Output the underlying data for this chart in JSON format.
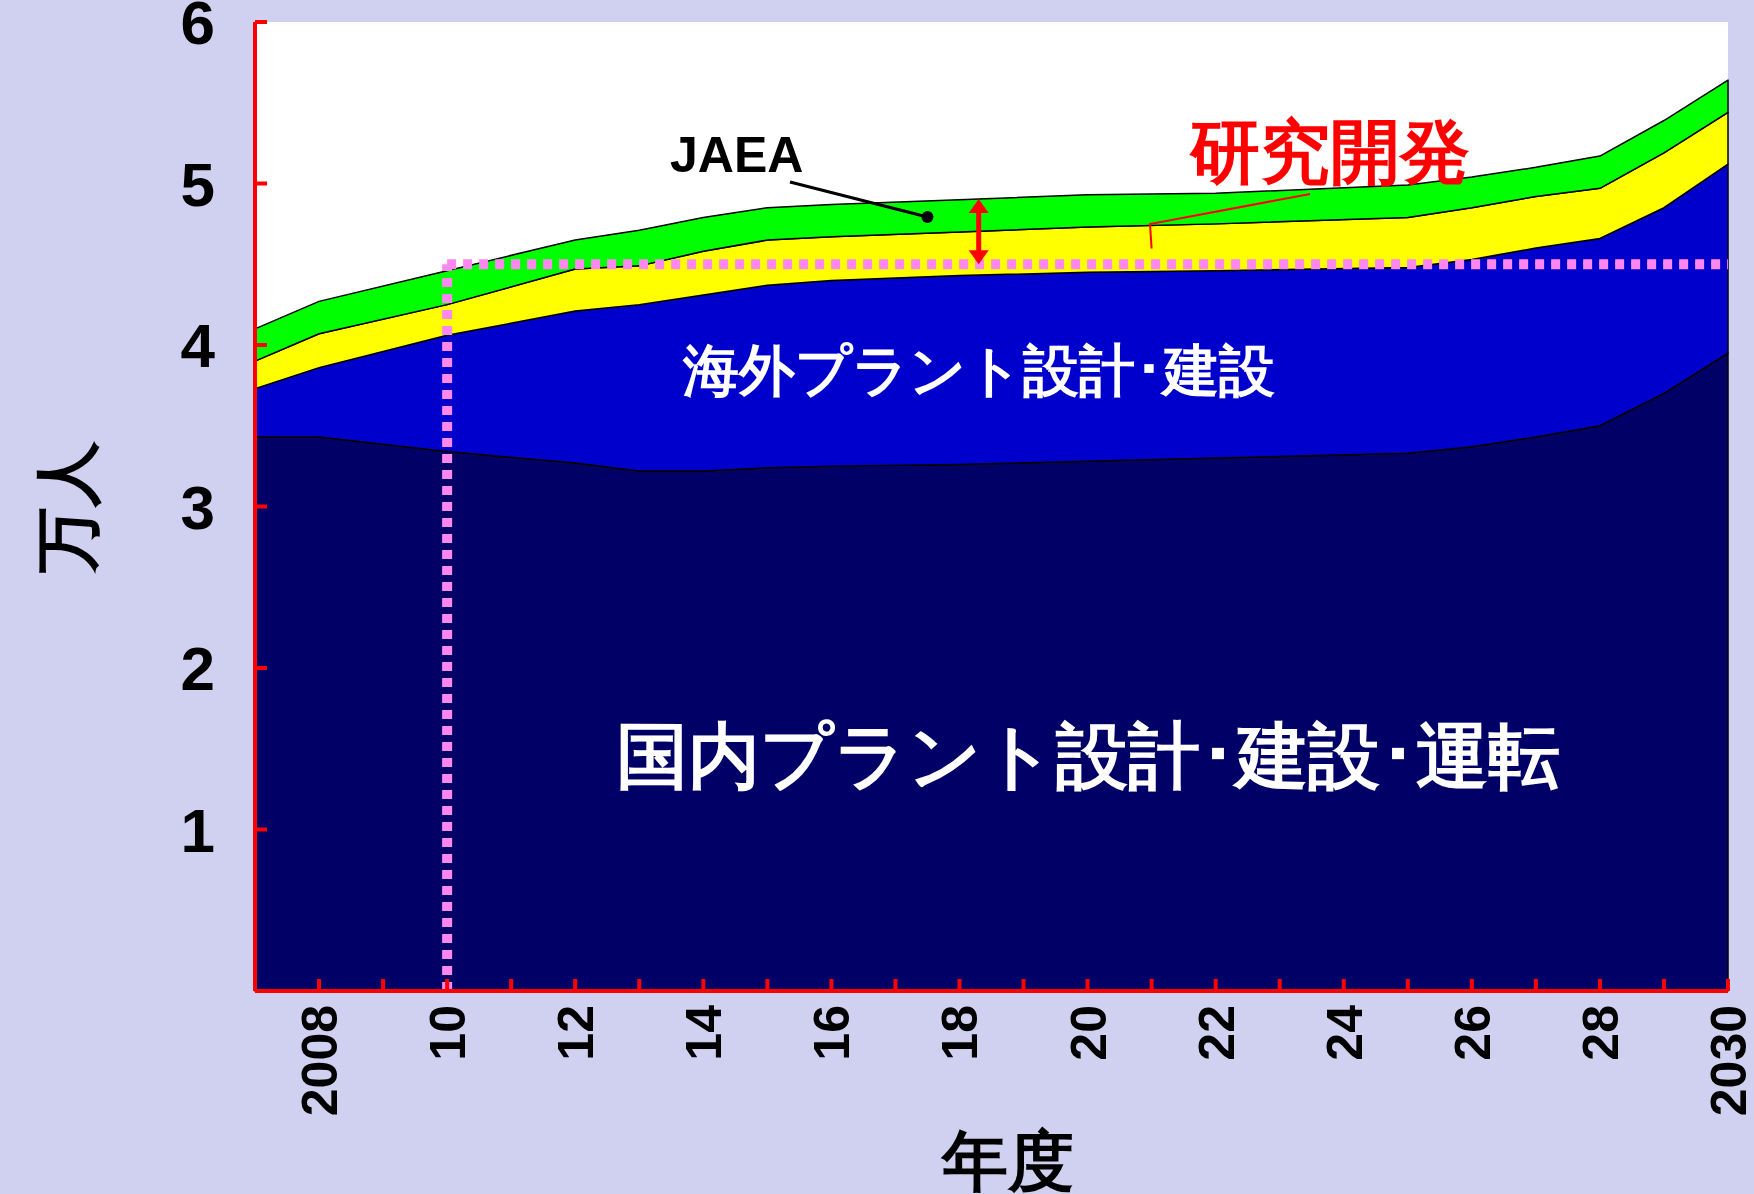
{
  "chart_data": {
    "type": "area",
    "stacked": true,
    "xlabel": "年度",
    "ylabel": "万人",
    "x": [
      2007,
      2008,
      2010,
      2012,
      2013,
      2014,
      2015,
      2016,
      2018,
      2020,
      2022,
      2025,
      2026,
      2027,
      2028,
      2029,
      2030
    ],
    "series": [
      {
        "name": "国内プラント設計･建設･運転",
        "color": "#000066",
        "values": [
          3.43,
          3.43,
          3.34,
          3.27,
          3.22,
          3.22,
          3.24,
          3.25,
          3.26,
          3.28,
          3.3,
          3.33,
          3.37,
          3.43,
          3.5,
          3.7,
          3.95
        ]
      },
      {
        "name": "海外プラント設計･建設",
        "color": "#0000cc",
        "values": [
          0.3,
          0.43,
          0.72,
          0.94,
          1.03,
          1.09,
          1.13,
          1.15,
          1.17,
          1.17,
          1.16,
          1.15,
          1.16,
          1.17,
          1.16,
          1.15,
          1.17
        ]
      },
      {
        "name": "研究開発",
        "color": "#ffff00",
        "values": [
          0.17,
          0.21,
          0.19,
          0.26,
          0.24,
          0.27,
          0.28,
          0.27,
          0.27,
          0.28,
          0.29,
          0.31,
          0.32,
          0.32,
          0.31,
          0.34,
          0.32
        ]
      },
      {
        "name": "JAEA",
        "color": "#00ff00",
        "values": [
          0.2,
          0.2,
          0.21,
          0.18,
          0.22,
          0.21,
          0.2,
          0.2,
          0.2,
          0.2,
          0.19,
          0.2,
          0.19,
          0.18,
          0.2,
          0.2,
          0.2
        ]
      }
    ],
    "xlim": [
      2007,
      2030
    ],
    "ylim": [
      0,
      6
    ],
    "xticks": [
      {
        "value": 2008,
        "label": "2008"
      },
      {
        "value": 2009,
        "label": null
      },
      {
        "value": 2010,
        "label": "10"
      },
      {
        "value": 2011,
        "label": null
      },
      {
        "value": 2012,
        "label": "12"
      },
      {
        "value": 2013,
        "label": null
      },
      {
        "value": 2014,
        "label": "14"
      },
      {
        "value": 2015,
        "label": null
      },
      {
        "value": 2016,
        "label": "16"
      },
      {
        "value": 2017,
        "label": null
      },
      {
        "value": 2018,
        "label": "18"
      },
      {
        "value": 2019,
        "label": null
      },
      {
        "value": 2020,
        "label": "20"
      },
      {
        "value": 2021,
        "label": null
      },
      {
        "value": 2022,
        "label": "22"
      },
      {
        "value": 2023,
        "label": null
      },
      {
        "value": 2024,
        "label": "24"
      },
      {
        "value": 2025,
        "label": null
      },
      {
        "value": 2026,
        "label": "26"
      },
      {
        "value": 2027,
        "label": null
      },
      {
        "value": 2028,
        "label": "28"
      },
      {
        "value": 2029,
        "label": null
      },
      {
        "value": 2030,
        "label": "2030"
      }
    ],
    "yticks": [
      1,
      2,
      3,
      4,
      5,
      6
    ],
    "ref_lines": [
      {
        "axis": "x",
        "value": 2010,
        "color": "#ff88ee",
        "line_style": "dotted"
      },
      {
        "axis": "y",
        "value": 4.5,
        "color": "#ff88ee",
        "line_style": "dotted"
      }
    ]
  }
}
